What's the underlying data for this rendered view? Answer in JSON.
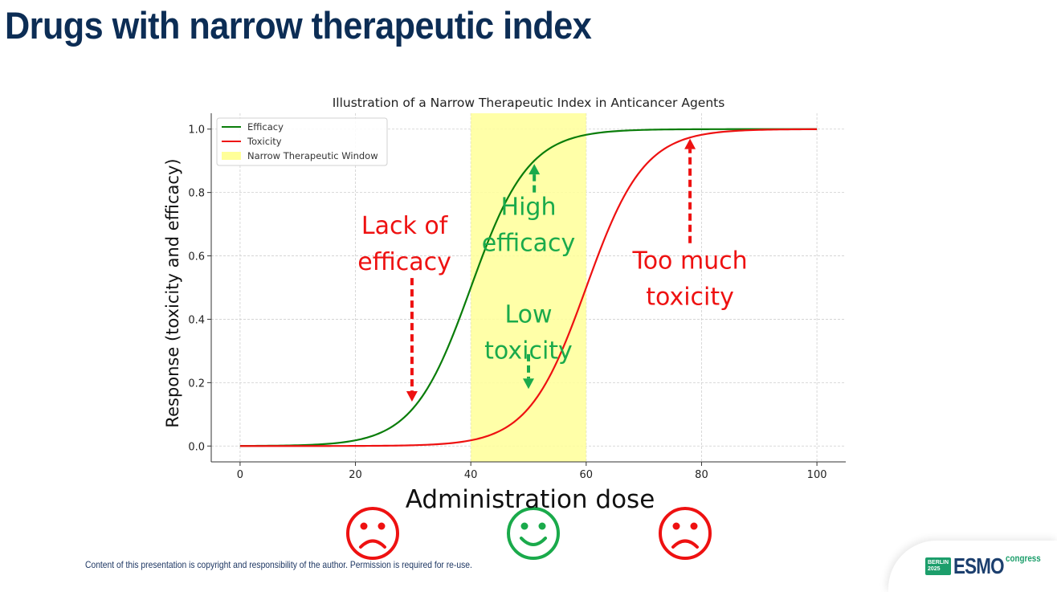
{
  "slide": {
    "title": "Drugs with narrow therapeutic index",
    "footer": "Content of this presentation is copyright and responsibility of the author. Permission is required for re-use.",
    "logo": {
      "badge_line1": "BERLIN",
      "badge_line2": "2025",
      "wordmark": "ESMO",
      "tagline": "congress"
    }
  },
  "chart_data": {
    "type": "line",
    "title": "Illustration of a Narrow Therapeutic Index in Anticancer Agents",
    "xlabel": "Administration dose",
    "ylabel": "Response (toxicity and efficacy)",
    "xlim": [
      -5,
      105
    ],
    "ylim": [
      -0.05,
      1.05
    ],
    "xticks": [
      0,
      20,
      40,
      60,
      80,
      100
    ],
    "yticks": [
      0.0,
      0.2,
      0.4,
      0.6,
      0.8,
      1.0
    ],
    "xtick_labels": [
      "0",
      "20",
      "40",
      "60",
      "80",
      "100"
    ],
    "ytick_labels": [
      "0.0",
      "0.2",
      "0.4",
      "0.6",
      "0.8",
      "1.0"
    ],
    "grid": true,
    "legend_position": "top-left",
    "series": [
      {
        "name": "Efficacy",
        "color": "#0a7d0a",
        "function": "logistic",
        "midpoint": 40,
        "slope": 0.2,
        "x_range": [
          0,
          100
        ]
      },
      {
        "name": "Toxicity",
        "color": "#ee1111",
        "function": "logistic",
        "midpoint": 60,
        "slope": 0.2,
        "x_range": [
          0,
          100
        ]
      }
    ],
    "shaded_region": {
      "name": "Narrow Therapeutic Window",
      "x_range": [
        40,
        60
      ],
      "color": "#ffff99"
    },
    "annotations": [
      {
        "lines": [
          "Lack of",
          "efficacy"
        ],
        "color": "#ee1111",
        "text_at": [
          28.5,
          0.67
        ],
        "arrow_from": [
          29.8,
          0.53
        ],
        "arrow_to": [
          29.8,
          0.14
        ]
      },
      {
        "lines": [
          "High",
          "efficacy"
        ],
        "color": "#1aaa4b",
        "text_at": [
          50,
          0.73
        ],
        "arrow_from": [
          51,
          0.8
        ],
        "arrow_to": [
          51,
          0.89
        ]
      },
      {
        "lines": [
          "Low",
          "toxicity"
        ],
        "color": "#1aaa4b",
        "text_at": [
          50,
          0.39
        ],
        "arrow_from": [
          50,
          0.29
        ],
        "arrow_to": [
          50,
          0.18
        ]
      },
      {
        "lines": [
          "Too much",
          "toxicity"
        ],
        "color": "#ee1111",
        "text_at": [
          78,
          0.56
        ],
        "arrow_from": [
          78,
          0.64
        ],
        "arrow_to": [
          78,
          0.97
        ]
      }
    ],
    "faces": [
      {
        "mood": "sad",
        "color": "#ee1111"
      },
      {
        "mood": "happy",
        "color": "#1aaa4b"
      },
      {
        "mood": "sad",
        "color": "#ee1111"
      }
    ]
  }
}
